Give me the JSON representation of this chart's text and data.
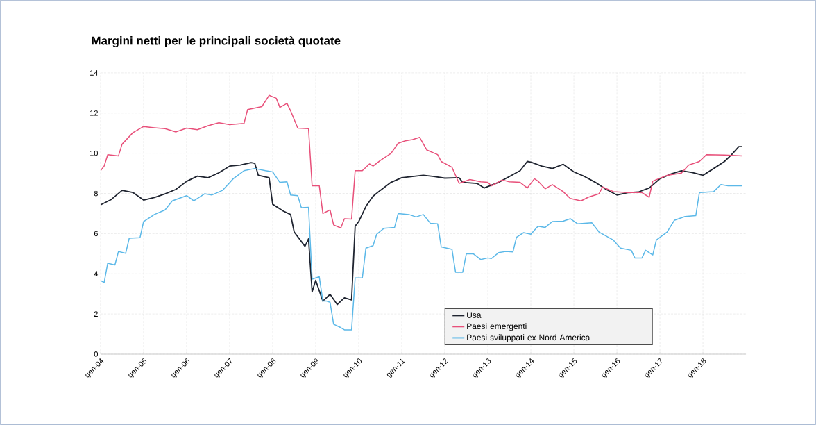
{
  "chart_data": {
    "type": "line",
    "title": "Margini netti per le principali società quotate",
    "xlim": [
      "2004-01",
      "2019-01"
    ],
    "ylim": [
      0,
      14
    ],
    "yticks": [
      0,
      2,
      4,
      6,
      8,
      10,
      12,
      14
    ],
    "xticks": [
      {
        "value": "2004-01",
        "label": "gen-04"
      },
      {
        "value": "2005-01",
        "label": "gen-05"
      },
      {
        "value": "2006-01",
        "label": "gen-06"
      },
      {
        "value": "2007-01",
        "label": "gen-07"
      },
      {
        "value": "2008-01",
        "label": "gen-08"
      },
      {
        "value": "2009-01",
        "label": "gen-09"
      },
      {
        "value": "2010-01",
        "label": "gen-10"
      },
      {
        "value": "2011-01",
        "label": "gen-11"
      },
      {
        "value": "2012-01",
        "label": "gen-12"
      },
      {
        "value": "2013-01",
        "label": "gen-13"
      },
      {
        "value": "2014-01",
        "label": "gen-14"
      },
      {
        "value": "2015-01",
        "label": "gen-15"
      },
      {
        "value": "2016-01",
        "label": "gen-16"
      },
      {
        "value": "2017-01",
        "label": "gen-17"
      },
      {
        "value": "2018-01",
        "label": "gen-18"
      }
    ],
    "grid": true,
    "legend": "bottom right",
    "line_style": "solid",
    "marker": "none",
    "series": [
      {
        "name": "Usa",
        "color": "#1f2430",
        "x": [
          "2004-01",
          "2004-04",
          "2004-07",
          "2004-10",
          "2005-01",
          "2005-04",
          "2005-07",
          "2005-10",
          "2006-01",
          "2006-04",
          "2006-07",
          "2006-10",
          "2007-01",
          "2007-04",
          "2007-07",
          "2007-08",
          "2007-09",
          "2007-12",
          "2008-01",
          "2008-04",
          "2008-06",
          "2008-07",
          "2008-10",
          "2008-11",
          "2008-12",
          "2009-01",
          "2009-03",
          "2009-05",
          "2009-07",
          "2009-09",
          "2009-11",
          "2009-12",
          "2010-01",
          "2010-03",
          "2010-05",
          "2010-07",
          "2010-10",
          "2011-01",
          "2011-04",
          "2011-07",
          "2011-10",
          "2012-01",
          "2012-05",
          "2012-06",
          "2012-10",
          "2012-12",
          "2013-04",
          "2013-07",
          "2013-10",
          "2013-12",
          "2014-01",
          "2014-04",
          "2014-07",
          "2014-10",
          "2015-01",
          "2015-04",
          "2015-07",
          "2015-10",
          "2016-01",
          "2016-04",
          "2016-07",
          "2016-10",
          "2017-01",
          "2017-04",
          "2017-07",
          "2017-10",
          "2018-01",
          "2018-04",
          "2018-07",
          "2018-09",
          "2018-11",
          "2018-12"
        ],
        "values": [
          7.43,
          7.7,
          8.15,
          8.05,
          7.67,
          7.8,
          7.98,
          8.2,
          8.6,
          8.86,
          8.78,
          9.03,
          9.36,
          9.41,
          9.53,
          9.5,
          8.9,
          8.78,
          7.46,
          7.12,
          6.95,
          6.08,
          5.37,
          5.74,
          3.1,
          3.67,
          2.64,
          2.98,
          2.47,
          2.8,
          2.7,
          6.37,
          6.6,
          7.35,
          7.86,
          8.15,
          8.55,
          8.78,
          8.84,
          8.9,
          8.84,
          8.76,
          8.78,
          8.55,
          8.5,
          8.27,
          8.55,
          8.84,
          9.13,
          9.59,
          9.56,
          9.36,
          9.24,
          9.45,
          9.07,
          8.84,
          8.55,
          8.2,
          7.92,
          8.04,
          8.07,
          8.27,
          8.73,
          8.96,
          9.13,
          9.04,
          8.9,
          9.24,
          9.59,
          9.93,
          10.33,
          10.33
        ]
      },
      {
        "name": "Paesi emergenti",
        "color": "#e8507a",
        "x": [
          "2004-01",
          "2004-02",
          "2004-03",
          "2004-06",
          "2004-07",
          "2004-10",
          "2005-01",
          "2005-04",
          "2005-07",
          "2005-10",
          "2006-01",
          "2006-04",
          "2006-07",
          "2006-10",
          "2007-01",
          "2007-05",
          "2007-06",
          "2007-10",
          "2007-12",
          "2008-02",
          "2008-03",
          "2008-05",
          "2008-06",
          "2008-08",
          "2008-11",
          "2008-12",
          "2009-02",
          "2009-03",
          "2009-05",
          "2009-06",
          "2009-08",
          "2009-09",
          "2009-11",
          "2009-12",
          "2010-02",
          "2010-04",
          "2010-05",
          "2010-07",
          "2010-10",
          "2010-12",
          "2011-02",
          "2011-04",
          "2011-06",
          "2011-08",
          "2011-11",
          "2011-12",
          "2012-03",
          "2012-05",
          "2012-08",
          "2012-11",
          "2013-01",
          "2013-02",
          "2013-05",
          "2013-07",
          "2013-10",
          "2013-12",
          "2014-02",
          "2014-03",
          "2014-05",
          "2014-07",
          "2014-10",
          "2014-12",
          "2015-03",
          "2015-05",
          "2015-08",
          "2015-09",
          "2015-12",
          "2016-04",
          "2016-08",
          "2016-10",
          "2016-11",
          "2017-03",
          "2017-07",
          "2017-09",
          "2017-12",
          "2018-02",
          "2018-07",
          "2018-12"
        ],
        "values": [
          9.13,
          9.36,
          9.93,
          9.87,
          10.45,
          11.02,
          11.33,
          11.27,
          11.22,
          11.06,
          11.25,
          11.17,
          11.37,
          11.52,
          11.42,
          11.48,
          12.17,
          12.32,
          12.88,
          12.74,
          12.28,
          12.48,
          12.11,
          11.25,
          11.22,
          8.38,
          8.38,
          7.0,
          7.18,
          6.43,
          6.28,
          6.74,
          6.72,
          9.13,
          9.13,
          9.47,
          9.36,
          9.64,
          9.99,
          10.5,
          10.62,
          10.68,
          10.79,
          10.16,
          9.93,
          9.59,
          9.3,
          8.5,
          8.69,
          8.58,
          8.55,
          8.38,
          8.67,
          8.58,
          8.55,
          8.27,
          8.73,
          8.61,
          8.23,
          8.44,
          8.09,
          7.75,
          7.63,
          7.81,
          7.98,
          8.32,
          8.09,
          8.04,
          8.04,
          7.81,
          8.61,
          8.9,
          9.01,
          9.41,
          9.59,
          9.93,
          9.91,
          9.87
        ]
      },
      {
        "name": "Paesi sviluppati ex Nord America",
        "color": "#5bb8e8",
        "x": [
          "2004-01",
          "2004-02",
          "2004-03",
          "2004-05",
          "2004-06",
          "2004-08",
          "2004-09",
          "2004-12",
          "2005-01",
          "2005-04",
          "2005-07",
          "2005-09",
          "2006-01",
          "2006-03",
          "2006-06",
          "2006-08",
          "2006-11",
          "2007-02",
          "2007-05",
          "2007-08",
          "2007-11",
          "2008-01",
          "2008-03",
          "2008-05",
          "2008-06",
          "2008-08",
          "2008-09",
          "2008-11",
          "2008-12",
          "2009-02",
          "2009-03",
          "2009-04",
          "2009-05",
          "2009-06",
          "2009-08",
          "2009-09",
          "2009-11",
          "2009-12",
          "2010-02",
          "2010-03",
          "2010-05",
          "2010-06",
          "2010-08",
          "2010-11",
          "2010-12",
          "2011-03",
          "2011-05",
          "2011-07",
          "2011-09",
          "2011-11",
          "2011-12",
          "2012-03",
          "2012-04",
          "2012-06",
          "2012-07",
          "2012-09",
          "2012-11",
          "2013-01",
          "2013-02",
          "2013-04",
          "2013-06",
          "2013-08",
          "2013-09",
          "2013-11",
          "2014-01",
          "2014-03",
          "2014-05",
          "2014-07",
          "2014-10",
          "2014-12",
          "2015-02",
          "2015-06",
          "2015-08",
          "2015-12",
          "2016-02",
          "2016-05",
          "2016-06",
          "2016-08",
          "2016-09",
          "2016-11",
          "2016-12",
          "2017-03",
          "2017-05",
          "2017-08",
          "2017-11",
          "2017-12",
          "2018-04",
          "2018-06",
          "2018-08",
          "2018-12"
        ],
        "values": [
          3.67,
          3.56,
          4.53,
          4.44,
          5.11,
          5.02,
          5.77,
          5.8,
          6.6,
          6.95,
          7.18,
          7.63,
          7.89,
          7.63,
          7.98,
          7.92,
          8.15,
          8.73,
          9.13,
          9.24,
          9.13,
          9.07,
          8.55,
          8.58,
          7.92,
          7.89,
          7.29,
          7.31,
          3.73,
          3.85,
          2.64,
          2.64,
          2.58,
          1.49,
          1.32,
          1.21,
          1.21,
          3.79,
          3.79,
          5.28,
          5.4,
          5.97,
          6.26,
          6.31,
          7.0,
          6.95,
          6.83,
          6.95,
          6.51,
          6.49,
          5.34,
          5.22,
          4.08,
          4.08,
          4.99,
          4.99,
          4.71,
          4.79,
          4.76,
          5.05,
          5.11,
          5.09,
          5.82,
          6.05,
          5.97,
          6.37,
          6.31,
          6.6,
          6.62,
          6.74,
          6.49,
          6.54,
          6.08,
          5.68,
          5.28,
          5.17,
          4.79,
          4.79,
          5.17,
          4.94,
          5.68,
          6.08,
          6.66,
          6.85,
          6.89,
          8.04,
          8.09,
          8.44,
          8.38,
          8.38
        ]
      }
    ]
  }
}
